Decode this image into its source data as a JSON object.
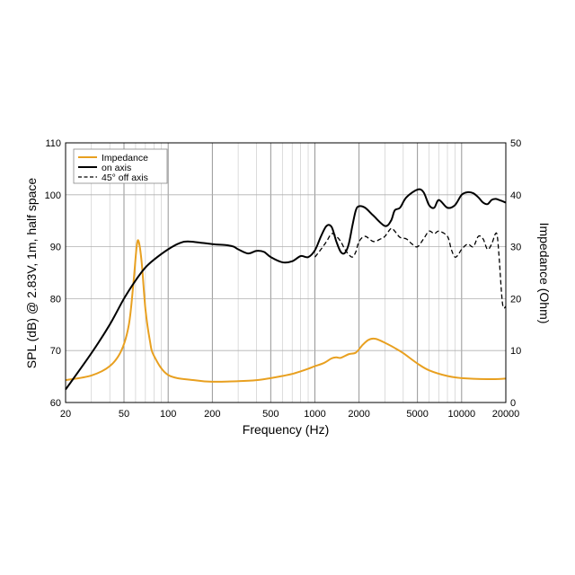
{
  "chart_data": {
    "type": "line",
    "title": "",
    "xlabel": "Frequency (Hz)",
    "ylabel": "SPL (dB) @ 2.83V, 1m, half space",
    "y2label": "Impedance (Ohm)",
    "xscale": "log",
    "xlim": [
      20,
      20000
    ],
    "ylim": [
      60,
      110
    ],
    "y2lim": [
      0,
      50
    ],
    "xticks": [
      20,
      50,
      100,
      200,
      500,
      1000,
      2000,
      5000,
      10000,
      20000
    ],
    "xtick_labels": [
      "20",
      "50",
      "100",
      "200",
      "500",
      "1000",
      "2000",
      "5000",
      "10000",
      "20000"
    ],
    "yticks": [
      60,
      70,
      80,
      90,
      100,
      110
    ],
    "y2ticks": [
      0,
      10,
      20,
      30,
      40,
      50
    ],
    "grid": true,
    "legend_position": "top-left",
    "series": [
      {
        "name": "Impedance",
        "axis": "right",
        "color": "#e8a020",
        "style": "solid",
        "x": [
          20,
          30,
          40,
          48,
          54,
          58,
          61,
          63,
          66,
          70,
          75,
          80,
          100,
          150,
          200,
          300,
          400,
          500,
          600,
          700,
          800,
          900,
          1000,
          1150,
          1300,
          1400,
          1500,
          1700,
          1900,
          2100,
          2300,
          2500,
          2700,
          3000,
          3500,
          4000,
          5000,
          6000,
          8000,
          10000,
          15000,
          20000
        ],
        "values": [
          4.3,
          5.2,
          7.0,
          10.0,
          15.0,
          23.0,
          30.0,
          31.0,
          27.0,
          18.0,
          12.0,
          9.0,
          5.3,
          4.3,
          4.0,
          4.1,
          4.3,
          4.7,
          5.1,
          5.5,
          6.0,
          6.5,
          7.0,
          7.6,
          8.5,
          8.7,
          8.6,
          9.3,
          9.6,
          11.0,
          12.0,
          12.3,
          12.1,
          11.5,
          10.5,
          9.5,
          7.5,
          6.2,
          5.1,
          4.7,
          4.5,
          4.6
        ]
      },
      {
        "name": "on axis",
        "axis": "left",
        "color": "#000000",
        "style": "solid",
        "x": [
          20,
          30,
          40,
          50,
          60,
          70,
          80,
          100,
          120,
          140,
          200,
          250,
          280,
          300,
          350,
          400,
          450,
          500,
          600,
          700,
          800,
          900,
          1000,
          1100,
          1200,
          1300,
          1400,
          1500,
          1600,
          1700,
          1800,
          1900,
          2000,
          2200,
          2500,
          3000,
          3300,
          3500,
          3800,
          4200,
          5000,
          5500,
          6000,
          6500,
          7000,
          8000,
          9000,
          10000,
          11000,
          12000,
          13000,
          14000,
          15000,
          16000,
          17000,
          18000,
          20000
        ],
        "values": [
          62.5,
          69.5,
          75.0,
          80.0,
          83.5,
          86.0,
          87.5,
          89.5,
          90.7,
          91.0,
          90.5,
          90.3,
          90.0,
          89.5,
          88.7,
          89.2,
          89.0,
          88.0,
          87.0,
          87.2,
          88.2,
          88.0,
          89.3,
          92.0,
          94.0,
          93.8,
          91.0,
          89.0,
          88.8,
          90.5,
          94.0,
          97.0,
          97.8,
          97.5,
          96.0,
          94.0,
          95.0,
          97.0,
          97.5,
          99.5,
          101.0,
          100.5,
          98.0,
          97.5,
          99.0,
          97.5,
          98.0,
          100.0,
          100.5,
          100.3,
          99.5,
          98.5,
          98.2,
          99.0,
          99.2,
          99.0,
          98.5
        ]
      },
      {
        "name": "45° off axis",
        "axis": "left",
        "color": "#000000",
        "style": "dashed",
        "x": [
          1000,
          1100,
          1200,
          1300,
          1400,
          1500,
          1600,
          1700,
          1800,
          1900,
          2000,
          2200,
          2500,
          2800,
          3000,
          3300,
          3500,
          3800,
          4200,
          4600,
          5000,
          5500,
          6000,
          6500,
          7000,
          8000,
          8500,
          9000,
          9500,
          10000,
          11000,
          12000,
          13000,
          14000,
          15000,
          16000,
          17000,
          17500,
          18000,
          19000,
          20000
        ],
        "values": [
          88.0,
          89.5,
          91.0,
          92.5,
          92.0,
          91.0,
          89.5,
          88.5,
          88.0,
          89.0,
          91.0,
          92.0,
          91.0,
          91.5,
          92.0,
          93.5,
          93.0,
          91.8,
          91.5,
          90.5,
          90.0,
          91.5,
          93.0,
          92.5,
          93.0,
          92.0,
          89.5,
          88.0,
          88.5,
          89.5,
          90.5,
          90.0,
          92.0,
          91.5,
          89.5,
          90.5,
          92.5,
          92.0,
          88.0,
          79.0,
          78.5
        ]
      }
    ]
  }
}
